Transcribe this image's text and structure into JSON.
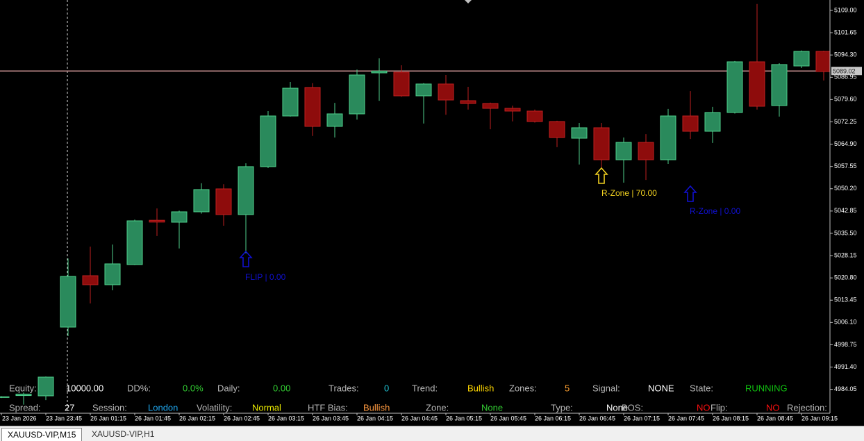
{
  "chart_data": {
    "type": "candlestick",
    "categories": [
      "23 Jan 2026",
      null,
      "23 Jan 23:45",
      null,
      "26 Jan 01:15",
      null,
      "26 Jan 01:45",
      null,
      "26 Jan 02:15",
      null,
      "26 Jan 02:45",
      null,
      "26 Jan 03:15",
      null,
      "26 Jan 03:45",
      null,
      "26 Jan 04:15",
      null,
      "26 Jan 04:45",
      null,
      "26 Jan 05:15",
      null,
      "26 Jan 05:45",
      null,
      "26 Jan 06:15",
      null,
      "26 Jan 06:45",
      null,
      "26 Jan 07:15",
      null,
      "26 Jan 07:45",
      null,
      "26 Jan 08:15",
      null,
      "26 Jan 08:45",
      null,
      "26 Jan 09:15",
      null
    ],
    "open": [
      4981.45,
      4982.0,
      4981.91,
      5004.58,
      5021.52,
      5018.55,
      5025.19,
      5039.8,
      5039.16,
      5042.59,
      5050.15,
      5041.67,
      5057.48,
      5074.19,
      5083.58,
      5070.76,
      5074.88,
      5088.4,
      5088.62,
      5080.83,
      5084.73,
      5079.23,
      5078.31,
      5076.71,
      5075.8,
      5072.36,
      5066.86,
      5070.3,
      5059.76,
      5065.49,
      5059.76,
      5074.19,
      5069.15,
      5075.34,
      5092.05,
      5077.63,
      5090.68,
      5095.49
    ],
    "high": [
      4981.8,
      4983.0,
      4988.3,
      5027.2,
      5031.1,
      5031.8,
      5040.0,
      5043.7,
      5043.0,
      5052.0,
      5051.7,
      5058.6,
      5075.8,
      5085.4,
      5085.0,
      5078.5,
      5089.5,
      5093.2,
      5090.9,
      5085.0,
      5087.7,
      5083.8,
      5078.6,
      5077.6,
      5076.3,
      5072.6,
      5071.9,
      5071.9,
      5067.1,
      5068.2,
      5076.5,
      5082.4,
      5077.2,
      5092.3,
      5111.1,
      5091.6,
      5095.8,
      5095.7
    ],
    "low": [
      4981.2,
      4979.0,
      4980.5,
      5001.6,
      5012.4,
      5016.7,
      5025.0,
      5034.6,
      5030.5,
      5042.0,
      5038.0,
      5028.9,
      5057.0,
      5074.0,
      5067.6,
      5067.1,
      5073.0,
      5079.2,
      5080.5,
      5071.7,
      5074.6,
      5076.3,
      5069.8,
      5072.4,
      5072.0,
      5063.9,
      5058.2,
      5057.0,
      5052.2,
      5053.1,
      5058.4,
      5066.6,
      5065.3,
      5075.0,
      5076.3,
      5074.0,
      5090.0,
      5085.9
    ],
    "close": [
      4981.6,
      4982.5,
      4988.09,
      5021.29,
      5018.55,
      5025.42,
      5039.61,
      5039.2,
      5042.59,
      5049.92,
      5041.67,
      5057.48,
      5074.19,
      5083.35,
      5070.76,
      5074.88,
      5087.7,
      5089.0,
      5080.83,
      5084.73,
      5079.46,
      5078.31,
      5076.71,
      5075.8,
      5072.36,
      5067.09,
      5070.3,
      5059.76,
      5065.49,
      5059.76,
      5074.19,
      5069.15,
      5075.34,
      5092.05,
      5077.4,
      5091.14,
      5095.49,
      5088.85
    ],
    "up_color": "#2a8a5c",
    "up_border": "#4fd08c",
    "down_color": "#8e0c0c",
    "down_border": "#c02020",
    "ylim": [
      4976.18,
      5112.43
    ],
    "yticks": [
      {
        "value": 5109,
        "label": "5109.00"
      },
      {
        "value": 5101.65,
        "label": "5101.65"
      },
      {
        "value": 5094.3,
        "label": "5094.30"
      },
      {
        "value": 5086.95,
        "label": "5086.95"
      },
      {
        "value": 5079.6,
        "label": "5079.60"
      },
      {
        "value": 5072.25,
        "label": "5072.25"
      },
      {
        "value": 5064.9,
        "label": "5064.90"
      },
      {
        "value": 5057.55,
        "label": "5057.55"
      },
      {
        "value": 5050.2,
        "label": "5050.20"
      },
      {
        "value": 5042.85,
        "label": "5042.85"
      },
      {
        "value": 5035.5,
        "label": "5035.50"
      },
      {
        "value": 5028.15,
        "label": "5028.15"
      },
      {
        "value": 5020.8,
        "label": "5020.80"
      },
      {
        "value": 5013.45,
        "label": "5013.45"
      },
      {
        "value": 5006.1,
        "label": "5006.10"
      },
      {
        "value": 4998.75,
        "label": "4998.75"
      },
      {
        "value": 4991.4,
        "label": "4991.40"
      },
      {
        "value": 4984.05,
        "label": "4984.05"
      }
    ],
    "price_line": {
      "value": 5089.02,
      "label": "5089.02"
    },
    "annotations": [
      {
        "text": "FLIP | 0.00",
        "color": "#1010d0"
      },
      {
        "text": "R-Zone | 70.00",
        "color": "#f0d020"
      },
      {
        "text": "R-Zone | 0.00",
        "color": "#1010d0"
      }
    ]
  },
  "dashboard": {
    "rows": [
      [
        {
          "label": "Equity:",
          "value": "10000.00",
          "color": "#ffffff"
        },
        {
          "label": "DD%:",
          "value": "0.0%",
          "color": "#32cd32"
        },
        {
          "label": "Daily:",
          "value": "0.00",
          "color": "#32cd32"
        },
        {
          "label": "Trades:",
          "value": "0",
          "color": "#20c0d0"
        },
        {
          "label": "Trend:",
          "value": "Bullish",
          "color": "#ffd700"
        },
        {
          "label": "Zones:",
          "value": "5",
          "color": "#ffa030"
        },
        {
          "label": "Signal:",
          "value": "NONE",
          "color": "#ffffff"
        },
        {
          "label": "State:",
          "value": "RUNNING",
          "color": "#10c010"
        }
      ],
      [
        {
          "label": "Spread:",
          "value": "27",
          "color": "#ffffff"
        },
        {
          "label": "Session:",
          "value": "London",
          "color": "#20a8f0"
        },
        {
          "label": "Volatility:",
          "value": "Normal",
          "color": "#f0f000"
        },
        {
          "label": "HTF Bias:",
          "value": "Bullish",
          "color": "#ff9a40"
        },
        {
          "label": "Zone:",
          "value": "None",
          "color": "#32cd32"
        },
        {
          "label": "Type:",
          "value": "None",
          "color": "#ffffff"
        },
        {
          "label": "BOS:",
          "value": "NO",
          "color": "#ff1010"
        },
        {
          "label": "Flip:",
          "value": "NO",
          "color": "#ff1010"
        },
        {
          "label": "Rejection:"
        }
      ]
    ]
  },
  "tabs": [
    "XAUUSD-VIP,M15",
    "XAUUSD-VIP,H1"
  ]
}
